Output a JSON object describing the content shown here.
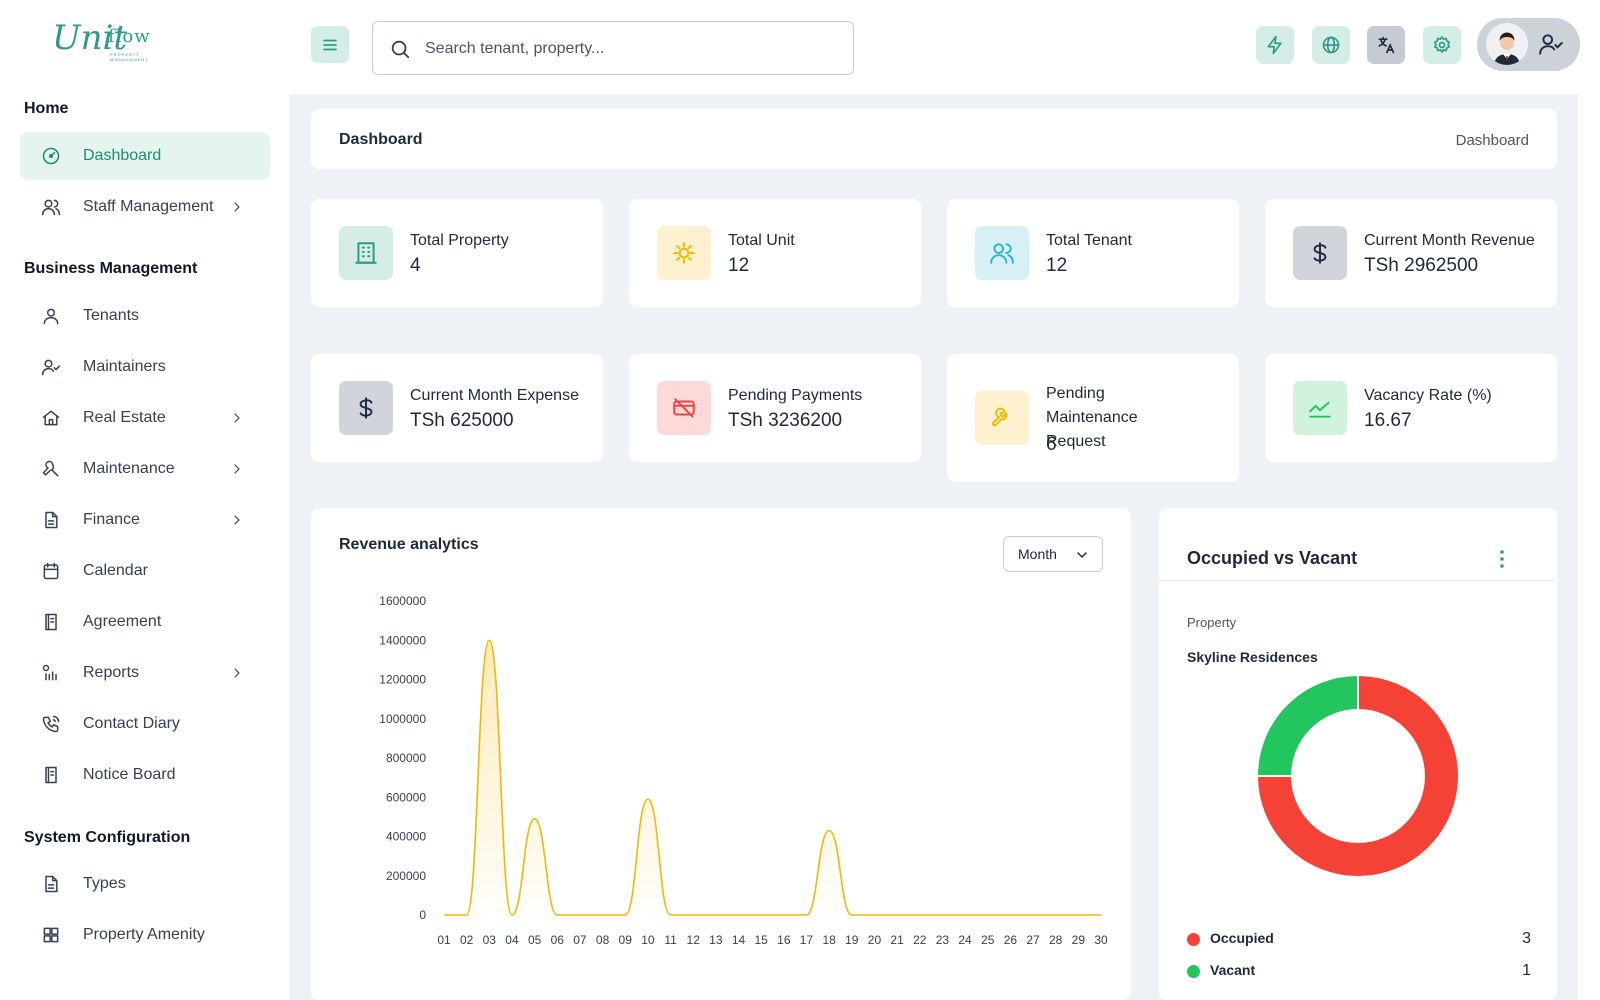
{
  "brand": {
    "logo_main": "Unit",
    "logo_accent": "flow",
    "logo_sub": "PROPERTY MANAGEMENT"
  },
  "search": {
    "placeholder": "Search tenant, property..."
  },
  "header_icons": [
    "lightning-icon",
    "globe-icon",
    "translate-icon",
    "settings-icon"
  ],
  "sidebar": {
    "sections": [
      {
        "title": "Home",
        "items": [
          {
            "label": "Dashboard",
            "icon": "dashboard-icon",
            "active": true,
            "has_children": false
          },
          {
            "label": "Staff Management",
            "icon": "users-icon",
            "has_children": true
          }
        ]
      },
      {
        "title": "Business Management",
        "items": [
          {
            "label": "Tenants",
            "icon": "user-icon",
            "has_children": false
          },
          {
            "label": "Maintainers",
            "icon": "user-check-icon",
            "has_children": false
          },
          {
            "label": "Real Estate",
            "icon": "home-icon",
            "has_children": true
          },
          {
            "label": "Maintenance",
            "icon": "wrench-icon",
            "has_children": true
          },
          {
            "label": "Finance",
            "icon": "file-icon",
            "has_children": true
          },
          {
            "label": "Calendar",
            "icon": "calendar-icon",
            "has_children": false
          },
          {
            "label": "Agreement",
            "icon": "book-icon",
            "has_children": false
          },
          {
            "label": "Reports",
            "icon": "reports-icon",
            "has_children": true
          },
          {
            "label": "Contact Diary",
            "icon": "phone-icon",
            "has_children": false
          },
          {
            "label": "Notice Board",
            "icon": "notice-icon",
            "has_children": false
          }
        ]
      },
      {
        "title": "System Configuration",
        "items": [
          {
            "label": "Types",
            "icon": "file-icon",
            "has_children": false
          },
          {
            "label": "Property Amenity",
            "icon": "grid-icon",
            "has_children": false
          }
        ]
      }
    ]
  },
  "breadcrumb": {
    "title": "Dashboard",
    "current": "Dashboard"
  },
  "stats": [
    {
      "label": "Total Property",
      "value": "4",
      "icon": "building-icon",
      "bg": "#d4ede6",
      "fg": "#2e9b86"
    },
    {
      "label": "Total Unit",
      "value": "12",
      "icon": "unit-icon",
      "bg": "#fdf1cf",
      "fg": "#f2b707"
    },
    {
      "label": "Total Tenant",
      "value": "12",
      "icon": "users-icon",
      "bg": "#d7f0f6",
      "fg": "#2bb5cf"
    },
    {
      "label": "Current Month Revenue",
      "value": "TSh 2962500",
      "icon": "dollar-icon",
      "bg": "#d1d5db",
      "fg": "#1f2a44"
    },
    {
      "label": "Current Month Expense",
      "value": "TSh 625000",
      "icon": "dollar-icon",
      "bg": "#d1d5db",
      "fg": "#1f2a44"
    },
    {
      "label": "Pending Payments",
      "value": "TSh 3236200",
      "icon": "card-off-icon",
      "bg": "#fcdada",
      "fg": "#ef4444"
    },
    {
      "label": "Pending Maintenance Request",
      "value": "6",
      "icon": "tool-icon",
      "bg": "#fdf1cf",
      "fg": "#f2b707"
    },
    {
      "label": "Vacancy Rate (%)",
      "value": "16.67",
      "icon": "trend-icon",
      "bg": "#d1f2dd",
      "fg": "#22c55e"
    }
  ],
  "revenue": {
    "title": "Revenue analytics",
    "period_select": "Month",
    "chart_data": {
      "type": "area",
      "title": "Revenue analytics",
      "x": [
        "01",
        "02",
        "03",
        "04",
        "05",
        "06",
        "07",
        "08",
        "09",
        "10",
        "11",
        "12",
        "13",
        "14",
        "15",
        "16",
        "17",
        "18",
        "19",
        "20",
        "21",
        "22",
        "23",
        "24",
        "25",
        "26",
        "27",
        "28",
        "29",
        "30"
      ],
      "series": [
        {
          "values": [
            0,
            0,
            1400000,
            0,
            490000,
            0,
            0,
            0,
            0,
            590000,
            0,
            0,
            0,
            0,
            0,
            0,
            0,
            430000,
            0,
            0,
            0,
            0,
            0,
            0,
            0,
            0,
            0,
            0,
            0,
            0
          ]
        }
      ],
      "yticks": [
        0,
        200000,
        400000,
        600000,
        800000,
        1000000,
        1200000,
        1400000,
        1600000
      ],
      "ylim": [
        0,
        1600000
      ],
      "color": "#f2b707",
      "grid": false
    }
  },
  "occupancy": {
    "title": "Occupied vs Vacant",
    "property_label": "Property",
    "property_name": "Skyline Residences",
    "chart_data": {
      "type": "pie",
      "donut": true,
      "labels": [
        "Occupied",
        "Vacant"
      ],
      "values": [
        3,
        1
      ],
      "colors": [
        "#f44336",
        "#22c55e"
      ],
      "legend": "bottom"
    }
  }
}
